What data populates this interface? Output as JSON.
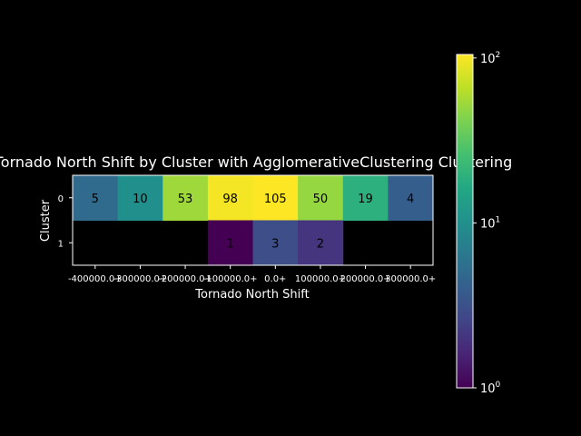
{
  "chart_data": {
    "type": "heatmap",
    "title": "Tornado North Shift by Cluster with AgglomerativeClustering Clustering",
    "xlabel": "Tornado North Shift",
    "ylabel": "Cluster",
    "x_categories": [
      "-400000.0+",
      "-300000.0+",
      "-200000.0+",
      "-100000.0+",
      "0.0+",
      "100000.0+",
      "200000.0+",
      "300000.0+"
    ],
    "y_categories": [
      "0",
      "1"
    ],
    "values": [
      [
        5,
        10,
        53,
        98,
        105,
        50,
        19,
        4
      ],
      [
        null,
        null,
        null,
        1,
        3,
        2,
        null,
        null
      ]
    ],
    "colorbar": {
      "scale": "log",
      "range": [
        1,
        105
      ],
      "ticks": [
        {
          "base": "10",
          "exp": "0",
          "value": 1
        },
        {
          "base": "10",
          "exp": "1",
          "value": 10
        },
        {
          "base": "10",
          "exp": "2",
          "value": 100
        }
      ],
      "colormap": "viridis"
    },
    "background_color": "#000000",
    "text_color": "#ffffff",
    "cell_text_color": "#000000"
  }
}
